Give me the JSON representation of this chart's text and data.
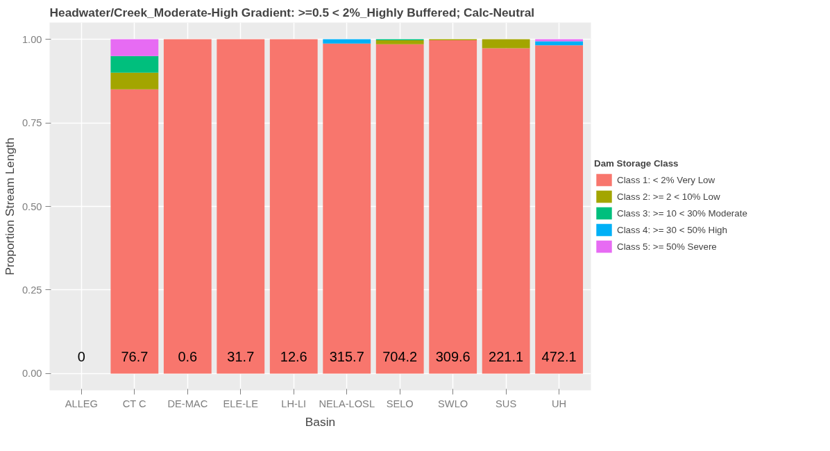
{
  "chart_data": {
    "type": "bar",
    "stacked": true,
    "title": "Headwater/Creek_Moderate-High Gradient: >=0.5 < 2%_Highly Buffered; Calc-Neutral",
    "xlabel": "Basin",
    "ylabel": "Proportion Stream Length",
    "legend_title": "Dam Storage Class",
    "categories": [
      "ALLEG",
      "CT C",
      "DE-MAC",
      "ELE-LE",
      "LH-LI",
      "NELA-LOSL",
      "SELO",
      "SWLO",
      "SUS",
      "UH"
    ],
    "series": [
      {
        "name": "Class 1: < 2% Very Low",
        "color": "#f8766d",
        "values": [
          0,
          0.85,
          1,
          1,
          1,
          0.987,
          0.985,
          0.997,
          0.973,
          0.982
        ]
      },
      {
        "name": "Class 2: >= 2 < 10% Low",
        "color": "#a3a500",
        "values": [
          0,
          0.05,
          0,
          0,
          0,
          0,
          0.012,
          0.003,
          0.027,
          0
        ]
      },
      {
        "name": "Class 3: >= 10 < 30% Moderate",
        "color": "#00bf7d",
        "values": [
          0,
          0.05,
          0,
          0,
          0,
          0,
          0.003,
          0,
          0,
          0
        ]
      },
      {
        "name": "Class 4: >= 30 < 50% High",
        "color": "#00b0f6",
        "values": [
          0,
          0,
          0,
          0,
          0,
          0.013,
          0,
          0,
          0,
          0.012
        ]
      },
      {
        "name": "Class 5: >= 50% Severe",
        "color": "#e76bf3",
        "values": [
          0,
          0.05,
          0,
          0,
          0,
          0,
          0,
          0,
          0,
          0.006
        ]
      }
    ],
    "annotations": [
      "0",
      "76.7",
      "0.6",
      "31.7",
      "12.6",
      "315.7",
      "704.2",
      "309.6",
      "221.1",
      "472.1"
    ],
    "ylim": [
      -0.05,
      1.05
    ],
    "yticks": [
      {
        "value": 0,
        "label": "0.00"
      },
      {
        "value": 0.25,
        "label": "0.25"
      },
      {
        "value": 0.5,
        "label": "0.50"
      },
      {
        "value": 0.75,
        "label": "0.75"
      },
      {
        "value": 1,
        "label": "1.00"
      }
    ],
    "grid": true,
    "legend": "right"
  }
}
